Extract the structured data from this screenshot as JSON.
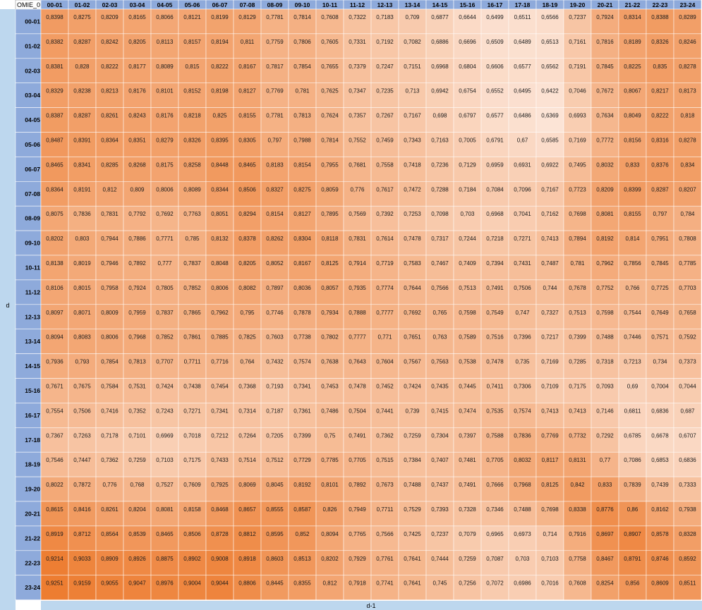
{
  "header": {
    "corner_label": "OMIE_0",
    "row_axis_label": "d",
    "col_axis_label": "d-1"
  },
  "colors": {
    "header_fill": "#8eaadb",
    "axis_band_fill": "#bdd7ee",
    "low_color": "#fce4d6",
    "high_color": "#ed7d31",
    "grid_line": "#ffffff"
  },
  "chart_data": {
    "type": "heatmap",
    "xlabel": "d-1",
    "ylabel": "d",
    "columns": [
      "00-01",
      "01-02",
      "02-03",
      "03-04",
      "04-05",
      "05-06",
      "06-07",
      "07-08",
      "08-09",
      "09-10",
      "10-11",
      "11-12",
      "12-13",
      "13-14",
      "14-15",
      "15-16",
      "16-17",
      "17-18",
      "18-19",
      "19-20",
      "20-21",
      "21-22",
      "22-23",
      "23-24"
    ],
    "rows": [
      "00-01",
      "01-02",
      "02-03",
      "03-04",
      "04-05",
      "05-06",
      "06-07",
      "07-08",
      "08-09",
      "09-10",
      "10-11",
      "11-12",
      "12-13",
      "13-14",
      "14-15",
      "15-16",
      "16-17",
      "17-18",
      "18-19",
      "19-20",
      "20-21",
      "21-22",
      "22-23",
      "23-24"
    ],
    "values": [
      [
        "0,8398",
        "0,8275",
        "0,8209",
        "0,8165",
        "0,8066",
        "0,8121",
        "0,8199",
        "0,8129",
        "0,7781",
        "0,7814",
        "0,7608",
        "0,7322",
        "0,7183",
        "0,709",
        "0,6877",
        "0,6644",
        "0,6499",
        "0,6511",
        "0,6566",
        "0,7237",
        "0,7924",
        "0,8314",
        "0,8388",
        "0,8289"
      ],
      [
        "0,8382",
        "0,8287",
        "0,8242",
        "0,8205",
        "0,8113",
        "0,8157",
        "0,8194",
        "0,811",
        "0,7759",
        "0,7806",
        "0,7605",
        "0,7331",
        "0,7192",
        "0,7082",
        "0,6886",
        "0,6696",
        "0,6509",
        "0,6489",
        "0,6513",
        "0,7161",
        "0,7816",
        "0,8189",
        "0,8326",
        "0,8246"
      ],
      [
        "0,8381",
        "0,828",
        "0,8222",
        "0,8177",
        "0,8089",
        "0,815",
        "0,8222",
        "0,8167",
        "0,7817",
        "0,7854",
        "0,7655",
        "0,7379",
        "0,7247",
        "0,7151",
        "0,6968",
        "0,6804",
        "0,6606",
        "0,6577",
        "0,6562",
        "0,7191",
        "0,7845",
        "0,8225",
        "0,835",
        "0,8278"
      ],
      [
        "0,8329",
        "0,8238",
        "0,8213",
        "0,8176",
        "0,8101",
        "0,8152",
        "0,8198",
        "0,8127",
        "0,7769",
        "0,781",
        "0,7625",
        "0,7347",
        "0,7235",
        "0,713",
        "0,6942",
        "0,6754",
        "0,6552",
        "0,6495",
        "0,6422",
        "0,7046",
        "0,7672",
        "0,8067",
        "0,8217",
        "0,8173"
      ],
      [
        "0,8387",
        "0,8287",
        "0,8261",
        "0,8243",
        "0,8176",
        "0,8218",
        "0,825",
        "0,8155",
        "0,7781",
        "0,7813",
        "0,7624",
        "0,7357",
        "0,7267",
        "0,7167",
        "0,698",
        "0,6797",
        "0,6577",
        "0,6486",
        "0,6369",
        "0,6993",
        "0,7634",
        "0,8049",
        "0,8222",
        "0,818"
      ],
      [
        "0,8487",
        "0,8391",
        "0,8364",
        "0,8351",
        "0,8279",
        "0,8326",
        "0,8395",
        "0,8305",
        "0,797",
        "0,7988",
        "0,7814",
        "0,7552",
        "0,7459",
        "0,7343",
        "0,7163",
        "0,7005",
        "0,6791",
        "0,67",
        "0,6585",
        "0,7169",
        "0,7772",
        "0,8156",
        "0,8316",
        "0,8278"
      ],
      [
        "0,8465",
        "0,8341",
        "0,8285",
        "0,8268",
        "0,8175",
        "0,8258",
        "0,8448",
        "0,8465",
        "0,8183",
        "0,8154",
        "0,7955",
        "0,7681",
        "0,7558",
        "0,7418",
        "0,7236",
        "0,7129",
        "0,6959",
        "0,6931",
        "0,6922",
        "0,7495",
        "0,8032",
        "0,833",
        "0,8376",
        "0,834"
      ],
      [
        "0,8364",
        "0,8191",
        "0,812",
        "0,809",
        "0,8006",
        "0,8089",
        "0,8344",
        "0,8506",
        "0,8327",
        "0,8275",
        "0,8059",
        "0,776",
        "0,7617",
        "0,7472",
        "0,7288",
        "0,7184",
        "0,7084",
        "0,7096",
        "0,7167",
        "0,7723",
        "0,8209",
        "0,8399",
        "0,8287",
        "0,8207"
      ],
      [
        "0,8075",
        "0,7836",
        "0,7831",
        "0,7792",
        "0,7692",
        "0,7763",
        "0,8051",
        "0,8294",
        "0,8154",
        "0,8127",
        "0,7895",
        "0,7569",
        "0,7392",
        "0,7253",
        "0,7098",
        "0,703",
        "0,6968",
        "0,7041",
        "0,7162",
        "0,7698",
        "0,8081",
        "0,8155",
        "0,797",
        "0,784"
      ],
      [
        "0,8202",
        "0,803",
        "0,7944",
        "0,7886",
        "0,7771",
        "0,785",
        "0,8132",
        "0,8378",
        "0,8262",
        "0,8304",
        "0,8118",
        "0,7831",
        "0,7614",
        "0,7478",
        "0,7317",
        "0,7244",
        "0,7218",
        "0,7271",
        "0,7413",
        "0,7894",
        "0,8192",
        "0,814",
        "0,7951",
        "0,7808"
      ],
      [
        "0,8138",
        "0,8019",
        "0,7946",
        "0,7892",
        "0,777",
        "0,7837",
        "0,8048",
        "0,8205",
        "0,8052",
        "0,8167",
        "0,8125",
        "0,7914",
        "0,7719",
        "0,7583",
        "0,7467",
        "0,7409",
        "0,7394",
        "0,7431",
        "0,7487",
        "0,781",
        "0,7962",
        "0,7856",
        "0,7845",
        "0,7785"
      ],
      [
        "0,8106",
        "0,8015",
        "0,7958",
        "0,7924",
        "0,7805",
        "0,7852",
        "0,8006",
        "0,8082",
        "0,7897",
        "0,8036",
        "0,8057",
        "0,7935",
        "0,7774",
        "0,7644",
        "0,7566",
        "0,7513",
        "0,7491",
        "0,7506",
        "0,744",
        "0,7678",
        "0,7752",
        "0,766",
        "0,7725",
        "0,7703"
      ],
      [
        "0,8097",
        "0,8071",
        "0,8009",
        "0,7959",
        "0,7837",
        "0,7865",
        "0,7962",
        "0,795",
        "0,7746",
        "0,7878",
        "0,7934",
        "0,7888",
        "0,7777",
        "0,7692",
        "0,765",
        "0,7598",
        "0,7549",
        "0,747",
        "0,7327",
        "0,7513",
        "0,7598",
        "0,7544",
        "0,7649",
        "0,7658"
      ],
      [
        "0,8094",
        "0,8083",
        "0,8006",
        "0,7968",
        "0,7852",
        "0,7861",
        "0,7885",
        "0,7825",
        "0,7603",
        "0,7738",
        "0,7802",
        "0,7777",
        "0,771",
        "0,7651",
        "0,763",
        "0,7589",
        "0,7516",
        "0,7396",
        "0,7217",
        "0,7399",
        "0,7488",
        "0,7446",
        "0,7571",
        "0,7592"
      ],
      [
        "0,7936",
        "0,793",
        "0,7854",
        "0,7813",
        "0,7707",
        "0,7711",
        "0,7716",
        "0,764",
        "0,7432",
        "0,7574",
        "0,7638",
        "0,7643",
        "0,7604",
        "0,7567",
        "0,7563",
        "0,7538",
        "0,7478",
        "0,735",
        "0,7169",
        "0,7285",
        "0,7318",
        "0,7213",
        "0,734",
        "0,7373"
      ],
      [
        "0,7671",
        "0,7675",
        "0,7584",
        "0,7531",
        "0,7424",
        "0,7438",
        "0,7454",
        "0,7368",
        "0,7193",
        "0,7341",
        "0,7453",
        "0,7478",
        "0,7452",
        "0,7424",
        "0,7435",
        "0,7445",
        "0,7411",
        "0,7306",
        "0,7109",
        "0,7175",
        "0,7093",
        "0,69",
        "0,7004",
        "0,7044"
      ],
      [
        "0,7554",
        "0,7506",
        "0,7416",
        "0,7352",
        "0,7243",
        "0,7271",
        "0,7341",
        "0,7314",
        "0,7187",
        "0,7361",
        "0,7486",
        "0,7504",
        "0,7441",
        "0,739",
        "0,7415",
        "0,7474",
        "0,7535",
        "0,7574",
        "0,7413",
        "0,7413",
        "0,7146",
        "0,6811",
        "0,6836",
        "0,687"
      ],
      [
        "0,7367",
        "0,7263",
        "0,7178",
        "0,7101",
        "0,6969",
        "0,7018",
        "0,7212",
        "0,7264",
        "0,7205",
        "0,7399",
        "0,75",
        "0,7491",
        "0,7362",
        "0,7259",
        "0,7304",
        "0,7397",
        "0,7588",
        "0,7836",
        "0,7769",
        "0,7732",
        "0,7292",
        "0,6785",
        "0,6678",
        "0,6707"
      ],
      [
        "0,7546",
        "0,7447",
        "0,7362",
        "0,7259",
        "0,7103",
        "0,7175",
        "0,7433",
        "0,7514",
        "0,7512",
        "0,7729",
        "0,7785",
        "0,7705",
        "0,7515",
        "0,7384",
        "0,7407",
        "0,7481",
        "0,7705",
        "0,8032",
        "0,8117",
        "0,8131",
        "0,77",
        "0,7086",
        "0,6853",
        "0,6836"
      ],
      [
        "0,8022",
        "0,7872",
        "0,776",
        "0,768",
        "0,7527",
        "0,7609",
        "0,7925",
        "0,8069",
        "0,8045",
        "0,8192",
        "0,8101",
        "0,7892",
        "0,7673",
        "0,7488",
        "0,7437",
        "0,7491",
        "0,7666",
        "0,7968",
        "0,8125",
        "0,842",
        "0,833",
        "0,7839",
        "0,7439",
        "0,7333"
      ],
      [
        "0,8615",
        "0,8416",
        "0,8261",
        "0,8204",
        "0,8081",
        "0,8158",
        "0,8468",
        "0,8657",
        "0,8555",
        "0,8587",
        "0,826",
        "0,7949",
        "0,7711",
        "0,7529",
        "0,7393",
        "0,7328",
        "0,7346",
        "0,7488",
        "0,7698",
        "0,8338",
        "0,8776",
        "0,86",
        "0,8162",
        "0,7938"
      ],
      [
        "0,8919",
        "0,8712",
        "0,8564",
        "0,8539",
        "0,8465",
        "0,8506",
        "0,8728",
        "0,8812",
        "0,8595",
        "0,852",
        "0,8094",
        "0,7765",
        "0,7566",
        "0,7425",
        "0,7237",
        "0,7079",
        "0,6965",
        "0,6973",
        "0,714",
        "0,7916",
        "0,8697",
        "0,8907",
        "0,8578",
        "0,8328"
      ],
      [
        "0,9214",
        "0,9033",
        "0,8909",
        "0,8926",
        "0,8875",
        "0,8902",
        "0,9008",
        "0,8918",
        "0,8603",
        "0,8513",
        "0,8202",
        "0,7929",
        "0,7761",
        "0,7641",
        "0,7444",
        "0,7259",
        "0,7087",
        "0,703",
        "0,7103",
        "0,7758",
        "0,8467",
        "0,8791",
        "0,8746",
        "0,8592"
      ],
      [
        "0,9251",
        "0,9159",
        "0,9055",
        "0,9047",
        "0,8976",
        "0,9004",
        "0,9044",
        "0,8806",
        "0,8445",
        "0,8355",
        "0,812",
        "0,7918",
        "0,7741",
        "0,7641",
        "0,745",
        "0,7256",
        "0,7072",
        "0,6986",
        "0,7016",
        "0,7608",
        "0,8254",
        "0,856",
        "0,8609",
        "0,8511"
      ]
    ]
  }
}
